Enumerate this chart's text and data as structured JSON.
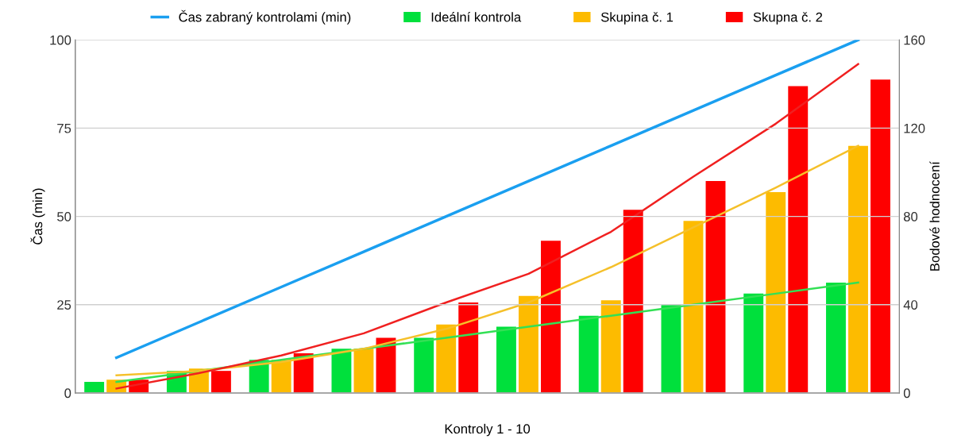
{
  "chart_data": {
    "type": "bar",
    "xlabel": "Kontroly 1 - 10",
    "ylabel": "Čas (min)",
    "y2label": "Bodové hodnocení",
    "categories": [
      null,
      null,
      null,
      null,
      null,
      null,
      null,
      null,
      null,
      null
    ],
    "series": [
      {
        "name": "Čas zabraný kontrolami (min)",
        "type": "line",
        "axis": "y",
        "color": "#1a9ff0",
        "values": [
          10,
          20,
          30,
          40,
          50,
          60,
          70,
          80,
          90,
          100
        ]
      },
      {
        "name": "Ideální kontrola",
        "axis": "y2",
        "color": "#00e03c",
        "values": [
          5,
          10,
          15,
          20,
          25,
          30,
          35,
          40,
          45,
          50
        ]
      },
      {
        "name": "Skupina č. 1",
        "axis": "y2",
        "color": "#fdbb00",
        "values": [
          6,
          11,
          15,
          20,
          31,
          44,
          42,
          78,
          91,
          112
        ]
      },
      {
        "name": "Skupna č. 2",
        "axis": "y2",
        "color": "#fe0000",
        "values": [
          6,
          10,
          18,
          25,
          41,
          69,
          83,
          96,
          139,
          142
        ]
      },
      {
        "type": "line",
        "axis": "y2",
        "color": "#33e055",
        "values": [
          5,
          10,
          15,
          20,
          25,
          30,
          35,
          40,
          45,
          50
        ]
      },
      {
        "type": "line",
        "axis": "y2",
        "color": "#f5c02a",
        "values": [
          8,
          10,
          14,
          20,
          29,
          41,
          57,
          75,
          93,
          112
        ]
      },
      {
        "type": "line",
        "axis": "y2",
        "color": "#f02020",
        "values": [
          2,
          9,
          17,
          27,
          41,
          54,
          73,
          98,
          122,
          149
        ]
      }
    ],
    "ylim": [
      0,
      100
    ],
    "yticks": [
      0,
      25,
      50,
      75,
      100
    ],
    "y2lim": [
      0,
      160
    ],
    "y2ticks": [
      0,
      40,
      80,
      120,
      160
    ],
    "grid": "y",
    "legend": "top",
    "tick_labels": "y"
  }
}
